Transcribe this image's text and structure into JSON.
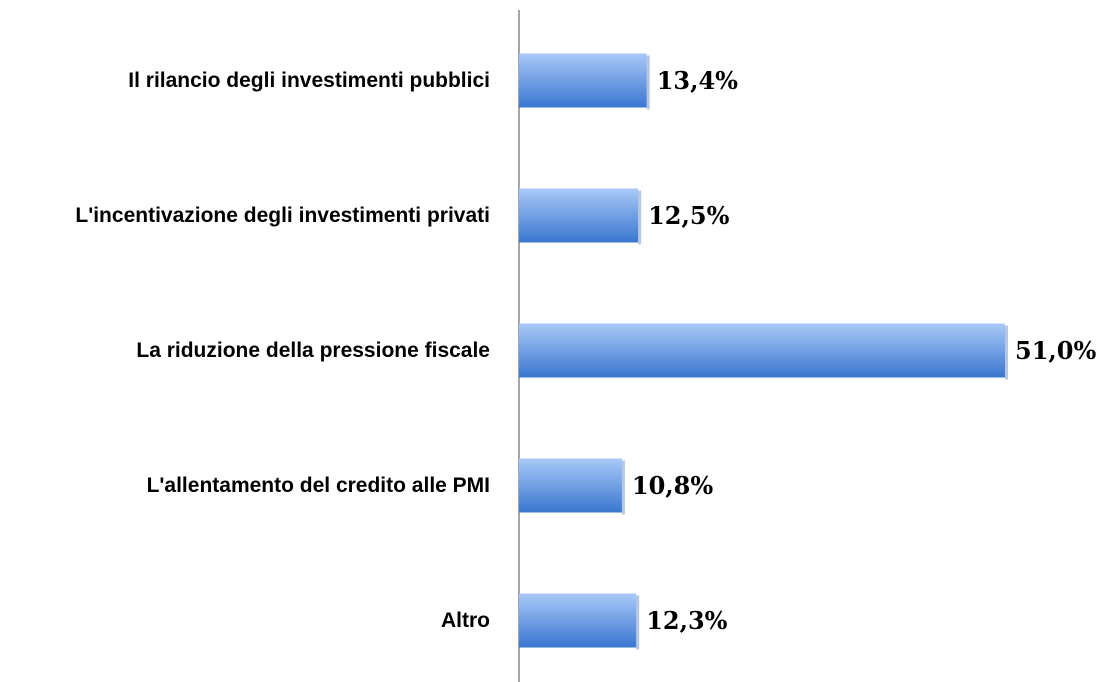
{
  "chart_data": {
    "type": "hbar",
    "categories": [
      "Il rilancio degli investimenti pubblici",
      "L'incentivazione degli investimenti privati",
      "La riduzione della pressione fiscale",
      "L'allentamento del credito alle PMI",
      "Altro"
    ],
    "values": [
      13.4,
      12.5,
      51.0,
      10.8,
      12.3
    ],
    "value_labels": [
      "13,4%",
      "12,5%",
      "51,0%",
      "10,8%",
      "12,3%"
    ],
    "xlim": [
      0,
      51.0
    ],
    "color": "#4f86d8"
  }
}
